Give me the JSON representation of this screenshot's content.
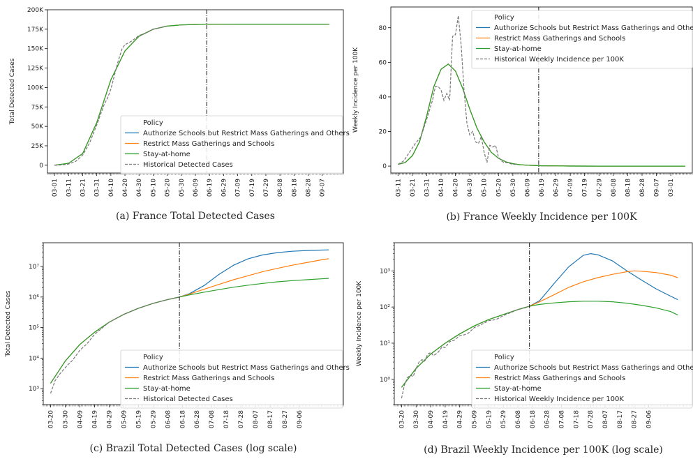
{
  "chart_data": [
    {
      "type": "line",
      "caption": "(a) France Total Detected Cases",
      "ylabel": "Total Detected Cases",
      "yscale": "linear",
      "ylim": [
        -10000,
        200000
      ],
      "y_ticks": [
        0,
        25000,
        50000,
        75000,
        100000,
        125000,
        150000,
        175000,
        200000
      ],
      "y_tick_labels": [
        "0",
        "25K",
        "50K",
        "75K",
        "100K",
        "125K",
        "150K",
        "175K",
        "200K"
      ],
      "x_tick_labels": [
        "03-01",
        "03-11",
        "03-21",
        "03-31",
        "04-10",
        "04-20",
        "04-30",
        "05-10",
        "05-20",
        "05-30",
        "06-09",
        "06-19",
        "06-29",
        "07-09",
        "07-19",
        "07-29",
        "08-08",
        "08-18",
        "08-28",
        "09-07"
      ],
      "x_range": [
        -5,
        205
      ],
      "vline_day": 108,
      "legend_title": "Policy",
      "legend_position": "lower-right",
      "series": [
        {
          "name": "Authorize Schools but Restrict Mass Gatherings and Others",
          "color": "#1f77b4",
          "style": "solid",
          "x": [
            0,
            10,
            20,
            30,
            40,
            50,
            60,
            70,
            80,
            90,
            100,
            110,
            120,
            130,
            140,
            150,
            160,
            170,
            180,
            190,
            195
          ],
          "y": [
            0,
            2500,
            15000,
            55000,
            110000,
            147000,
            166000,
            175000,
            179000,
            180500,
            181000,
            181300,
            181400,
            181500,
            181500,
            181500,
            181500,
            181500,
            181500,
            181500,
            181500
          ]
        },
        {
          "name": "Restrict Mass Gatherings and Schools",
          "color": "#ff7f0e",
          "style": "solid",
          "x": [
            0,
            10,
            20,
            30,
            40,
            50,
            60,
            70,
            80,
            90,
            100,
            110,
            120,
            130,
            140,
            150,
            160,
            170,
            180,
            190,
            195
          ],
          "y": [
            0,
            2500,
            15000,
            55000,
            110000,
            147000,
            166000,
            175000,
            179000,
            180500,
            181000,
            181300,
            181400,
            181500,
            181500,
            181500,
            181500,
            181500,
            181500,
            181500,
            181500
          ]
        },
        {
          "name": "Stay-at-home",
          "color": "#2ca02c",
          "style": "solid",
          "x": [
            0,
            10,
            20,
            30,
            40,
            50,
            60,
            70,
            80,
            90,
            100,
            110,
            120,
            130,
            140,
            150,
            160,
            170,
            180,
            190,
            195
          ],
          "y": [
            0,
            2500,
            15000,
            55000,
            110000,
            147000,
            166000,
            175000,
            179000,
            180500,
            181000,
            181300,
            181400,
            181500,
            181500,
            181500,
            181500,
            181500,
            181500,
            181500,
            181500
          ]
        },
        {
          "name": "Historical Detected Cases",
          "color": "#777777",
          "style": "dashed",
          "x": [
            0,
            5,
            10,
            15,
            20,
            25,
            30,
            35,
            38,
            40,
            42,
            45,
            48,
            50,
            55,
            60,
            65,
            70,
            75,
            80
          ],
          "y": [
            0,
            300,
            1500,
            5000,
            13000,
            29000,
            52000,
            77000,
            88000,
            98000,
            112000,
            133000,
            150000,
            155000,
            160000,
            167000,
            170000,
            175000,
            177000,
            179000
          ]
        }
      ]
    },
    {
      "type": "line",
      "caption": "(b) France Weekly Incidence per 100K",
      "ylabel": "Weekly Incidence per 100K",
      "yscale": "linear",
      "ylim": [
        -4,
        92
      ],
      "y_ticks": [
        0,
        20,
        40,
        60,
        80
      ],
      "y_tick_labels": [
        "0",
        "20",
        "40",
        "60",
        "80"
      ],
      "x_tick_labels": [
        "03-11",
        "03-21",
        "03-31",
        "04-10",
        "04-20",
        "04-30",
        "05-10",
        "05-20",
        "05-30",
        "06-09",
        "06-19",
        "06-29",
        "07-09",
        "07-19",
        "07-29",
        "08-08",
        "08-18",
        "08-28",
        "09-07",
        "03-01"
      ],
      "x_range": [
        -5,
        205
      ],
      "vline_day": 98,
      "legend_title": "Policy",
      "legend_position": "upper-right",
      "series": [
        {
          "name": "Authorize Schools but Restrict Mass Gatherings and Others",
          "color": "#1f77b4",
          "style": "solid",
          "x": [
            0,
            5,
            10,
            15,
            20,
            25,
            30,
            35,
            40,
            45,
            50,
            55,
            60,
            65,
            70,
            75,
            80,
            85,
            90,
            100,
            110,
            120,
            140,
            160,
            180,
            200
          ],
          "y": [
            1,
            2,
            6,
            14,
            29,
            46,
            56,
            59,
            55,
            45,
            33,
            22,
            14,
            8,
            4.5,
            2.5,
            1.4,
            0.8,
            0.5,
            0.2,
            0.1,
            0.05,
            0,
            0,
            0,
            0
          ]
        },
        {
          "name": "Restrict Mass Gatherings and Schools",
          "color": "#ff7f0e",
          "style": "solid",
          "x": [
            0,
            5,
            10,
            15,
            20,
            25,
            30,
            35,
            40,
            45,
            50,
            55,
            60,
            65,
            70,
            75,
            80,
            85,
            90,
            100,
            110,
            120,
            140,
            160,
            180,
            200
          ],
          "y": [
            1,
            2,
            6,
            14,
            29,
            46,
            56,
            59,
            55,
            45,
            33,
            22,
            14,
            8,
            4.5,
            2.5,
            1.4,
            0.8,
            0.5,
            0.2,
            0.1,
            0.05,
            0,
            0,
            0,
            0
          ]
        },
        {
          "name": "Stay-at-home",
          "color": "#2ca02c",
          "style": "solid",
          "x": [
            0,
            5,
            10,
            15,
            20,
            25,
            30,
            35,
            40,
            45,
            50,
            55,
            60,
            65,
            70,
            75,
            80,
            85,
            90,
            100,
            110,
            120,
            140,
            160,
            180,
            200
          ],
          "y": [
            1,
            2,
            6,
            14,
            29,
            46,
            56,
            59,
            55,
            45,
            33,
            22,
            14,
            8,
            4.5,
            2.5,
            1.4,
            0.8,
            0.5,
            0.2,
            0.1,
            0.05,
            0,
            0,
            0,
            0
          ]
        },
        {
          "name": "Historical Weekly Incidence per 100K",
          "color": "#777777",
          "style": "dashed",
          "x": [
            0,
            4,
            8,
            12,
            16,
            20,
            24,
            26,
            28,
            30,
            32,
            34,
            36,
            38,
            40,
            42,
            44,
            46,
            48,
            50,
            52,
            54,
            56,
            58,
            60,
            62,
            64,
            66,
            68,
            70,
            72,
            74,
            76,
            78,
            80,
            82
          ],
          "y": [
            1,
            3,
            8,
            13,
            17,
            27,
            38,
            46,
            46,
            44,
            38,
            42,
            38,
            75,
            76,
            87,
            70,
            44,
            25,
            18,
            20,
            14,
            13,
            17,
            8,
            2,
            12,
            11,
            12,
            5,
            3,
            2,
            2,
            1.5,
            1,
            1
          ]
        }
      ]
    },
    {
      "type": "line",
      "caption": "(c) Brazil Total Detected Cases (log scale)",
      "ylabel": "Total Detected Cases",
      "yscale": "log",
      "ylim": [
        300,
        60000000
      ],
      "y_ticks": [
        1000,
        10000,
        100000,
        1000000,
        10000000
      ],
      "y_tick_labels": [
        "10³",
        "10⁴",
        "10⁵",
        "10⁶",
        "10⁷"
      ],
      "x_tick_labels": [
        "03-20",
        "03-30",
        "04-09",
        "04-19",
        "04-29",
        "05-09",
        "05-19",
        "05-29",
        "06-08",
        "06-18",
        "06-28",
        "07-08",
        "07-18",
        "07-28",
        "08-07",
        "08-17",
        "08-27",
        "09-06"
      ],
      "x_range": [
        -5,
        200
      ],
      "vline_day": 88,
      "legend_title": "Policy",
      "legend_position": "lower-right",
      "series": [
        {
          "name": "Authorize Schools but Restrict Mass Gatherings and Others",
          "color": "#1f77b4",
          "style": "solid",
          "x": [
            0,
            10,
            20,
            30,
            40,
            50,
            60,
            70,
            80,
            88,
            95,
            105,
            115,
            125,
            135,
            145,
            155,
            165,
            175,
            185,
            190
          ],
          "y": [
            1500,
            8000,
            28000,
            70000,
            150000,
            270000,
            430000,
            620000,
            830000,
            1000000,
            1300000,
            2400000,
            5500000,
            11000000,
            18000000,
            24000000,
            28500000,
            31500000,
            33500000,
            34500000,
            35000000
          ]
        },
        {
          "name": "Restrict Mass Gatherings and Schools",
          "color": "#ff7f0e",
          "style": "solid",
          "x": [
            0,
            10,
            20,
            30,
            40,
            50,
            60,
            70,
            80,
            88,
            95,
            105,
            115,
            125,
            135,
            145,
            155,
            165,
            175,
            185,
            190
          ],
          "y": [
            1500,
            8000,
            28000,
            70000,
            150000,
            270000,
            430000,
            620000,
            830000,
            1000000,
            1250000,
            1800000,
            2600000,
            3700000,
            5000000,
            6800000,
            8700000,
            11000000,
            13500000,
            16500000,
            18000000
          ]
        },
        {
          "name": "Stay-at-home",
          "color": "#2ca02c",
          "style": "solid",
          "x": [
            0,
            10,
            20,
            30,
            40,
            50,
            60,
            70,
            80,
            88,
            95,
            105,
            115,
            125,
            135,
            145,
            155,
            165,
            175,
            185,
            190
          ],
          "y": [
            1500,
            8000,
            28000,
            70000,
            150000,
            270000,
            430000,
            620000,
            830000,
            1000000,
            1180000,
            1450000,
            1750000,
            2100000,
            2450000,
            2800000,
            3150000,
            3450000,
            3700000,
            3950000,
            4100000
          ]
        },
        {
          "name": "Historical Detected Cases",
          "color": "#777777",
          "style": "dashed",
          "x": [
            0,
            3,
            6,
            9,
            12,
            15,
            20,
            25,
            30,
            40,
            50,
            60,
            70,
            80,
            88
          ],
          "y": [
            700,
            1800,
            2900,
            4300,
            6200,
            8500,
            18000,
            30000,
            60000,
            150000,
            270000,
            430000,
            620000,
            830000,
            1000000
          ]
        }
      ]
    },
    {
      "type": "line",
      "caption": "(d) Brazil Weekly Incidence per 100K (log scale)",
      "ylabel": "Weekly Incidence per 100K",
      "yscale": "log",
      "ylim": [
        0.2,
        6000
      ],
      "y_ticks": [
        1,
        10,
        100,
        1000
      ],
      "y_tick_labels": [
        "10⁰",
        "10¹",
        "10²",
        "10³"
      ],
      "x_tick_labels": [
        "03-20",
        "03-30",
        "04-09",
        "04-19",
        "04-29",
        "05-09",
        "05-19",
        "05-29",
        "06-08",
        "06-18",
        "06-28",
        "07-08",
        "07-18",
        "07-28",
        "08-07",
        "08-17",
        "08-27",
        "09-06"
      ],
      "x_range": [
        -5,
        200
      ],
      "vline_day": 88,
      "legend_title": "Policy",
      "legend_position": "lower-right",
      "series": [
        {
          "name": "Authorize Schools but Restrict Mass Gatherings and Others",
          "color": "#1f77b4",
          "style": "solid",
          "x": [
            0,
            10,
            20,
            30,
            40,
            50,
            60,
            70,
            80,
            88,
            95,
            105,
            115,
            125,
            130,
            135,
            145,
            155,
            165,
            175,
            185,
            190
          ],
          "y": [
            0.6,
            2,
            5,
            10,
            18,
            30,
            45,
            62,
            85,
            105,
            150,
            450,
            1300,
            2700,
            3000,
            2800,
            1900,
            1000,
            560,
            320,
            200,
            160
          ]
        },
        {
          "name": "Restrict Mass Gatherings and Schools",
          "color": "#ff7f0e",
          "style": "solid",
          "x": [
            0,
            10,
            20,
            30,
            40,
            50,
            60,
            70,
            80,
            88,
            95,
            105,
            115,
            125,
            135,
            145,
            155,
            160,
            165,
            175,
            185,
            190
          ],
          "y": [
            0.6,
            2,
            5,
            10,
            18,
            30,
            45,
            62,
            85,
            105,
            140,
            220,
            350,
            500,
            650,
            800,
            950,
            1000,
            980,
            900,
            760,
            650
          ]
        },
        {
          "name": "Stay-at-home",
          "color": "#2ca02c",
          "style": "solid",
          "x": [
            0,
            10,
            20,
            30,
            40,
            50,
            60,
            70,
            80,
            88,
            95,
            105,
            115,
            125,
            135,
            145,
            155,
            165,
            175,
            185,
            190
          ],
          "y": [
            0.6,
            2,
            5,
            10,
            18,
            30,
            45,
            62,
            85,
            105,
            118,
            130,
            140,
            145,
            145,
            140,
            128,
            112,
            95,
            75,
            60
          ]
        },
        {
          "name": "Historical Weekly Incidence per 100K",
          "color": "#777777",
          "style": "dashed",
          "x": [
            0,
            2,
            4,
            6,
            8,
            10,
            12,
            14,
            16,
            18,
            20,
            22,
            25,
            28,
            30,
            33,
            36,
            40,
            43,
            46,
            50,
            55,
            60,
            65,
            70,
            75,
            80,
            85,
            88
          ],
          "y": [
            0.3,
            0.7,
            1.1,
            1.3,
            1.2,
            2,
            3,
            3.5,
            3.2,
            5,
            5.5,
            4.5,
            5.5,
            8,
            7.5,
            11,
            12,
            16,
            17,
            19,
            27,
            33,
            42,
            45,
            58,
            70,
            85,
            95,
            105
          ]
        }
      ]
    }
  ]
}
